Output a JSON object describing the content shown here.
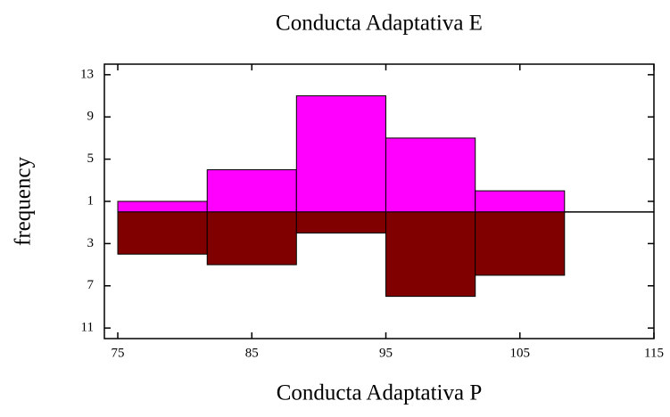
{
  "chart_data": {
    "type": "histogram",
    "title": "Conducta Adaptativa E",
    "xlabel": "Conducta Adaptativa P",
    "ylabel": "frequency",
    "bins": [
      75,
      81.67,
      88.33,
      95,
      101.67,
      108.33
    ],
    "series": [
      {
        "color": "#ff00ff",
        "values": [
          1,
          4,
          11,
          7,
          2
        ]
      },
      {
        "color": "#800000",
        "values": [
          -4,
          -5,
          -2,
          -8,
          -6
        ]
      }
    ],
    "xlim": [
      74,
      115
    ],
    "xticks": [
      75,
      85,
      95,
      105,
      115
    ],
    "ylim": [
      -12,
      14
    ],
    "yticks": [
      13,
      9,
      5,
      1,
      {
        "value": -3,
        "label": "3"
      },
      {
        "value": -7,
        "label": "7"
      },
      {
        "value": -11,
        "label": "11"
      }
    ]
  }
}
